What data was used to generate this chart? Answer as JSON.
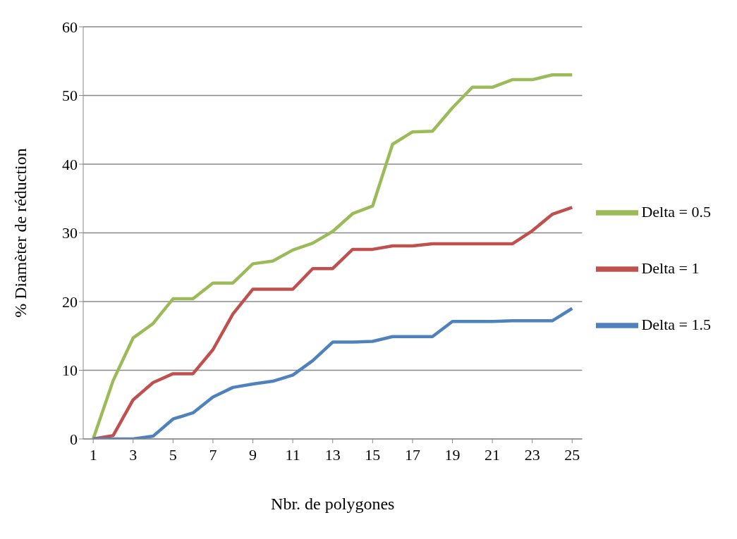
{
  "chart_data": {
    "type": "line",
    "xlabel": "Nbr. de polygones",
    "ylabel": "% Diamèter de réduction",
    "x": [
      1,
      2,
      3,
      4,
      5,
      6,
      7,
      8,
      9,
      10,
      11,
      12,
      13,
      14,
      15,
      16,
      17,
      18,
      19,
      20,
      21,
      22,
      23,
      24,
      25
    ],
    "xlim": [
      0.5,
      25.5
    ],
    "xticks": [
      1,
      3,
      5,
      7,
      9,
      11,
      13,
      15,
      17,
      19,
      21,
      23,
      25
    ],
    "series": [
      {
        "name": "Delta = 0.5",
        "color": "#9bbb59",
        "values": [
          0,
          8.5,
          14.7,
          16.8,
          20.4,
          20.4,
          22.7,
          22.7,
          25.5,
          25.9,
          27.5,
          28.5,
          30.2,
          32.8,
          33.9,
          42.9,
          44.7,
          44.8,
          48.2,
          51.2,
          51.2,
          52.3,
          52.3,
          53,
          53
        ]
      },
      {
        "name": "Delta = 1",
        "color": "#c0504d",
        "values": [
          0,
          0.5,
          5.7,
          8.2,
          9.5,
          9.5,
          13,
          18.2,
          21.8,
          21.8,
          21.8,
          24.8,
          24.8,
          27.6,
          27.6,
          28.1,
          28.1,
          28.4,
          28.4,
          28.4,
          28.4,
          28.4,
          30.3,
          32.7,
          33.7
        ]
      },
      {
        "name": "Delta = 1.5",
        "color": "#4f81bd",
        "values": [
          0,
          0,
          0,
          0.4,
          2.9,
          3.8,
          6.1,
          7.5,
          8,
          8.4,
          9.3,
          11.4,
          14.1,
          14.1,
          14.2,
          14.9,
          14.9,
          14.9,
          17.1,
          17.1,
          17.1,
          17.2,
          17.2,
          17.2,
          19
        ]
      }
    ],
    "ylim": [
      0,
      60
    ],
    "yticks": [
      0,
      10,
      20,
      30,
      40,
      50,
      60
    ],
    "grid": "y",
    "legend": "right",
    "marker": "none",
    "line_style": "solid"
  }
}
